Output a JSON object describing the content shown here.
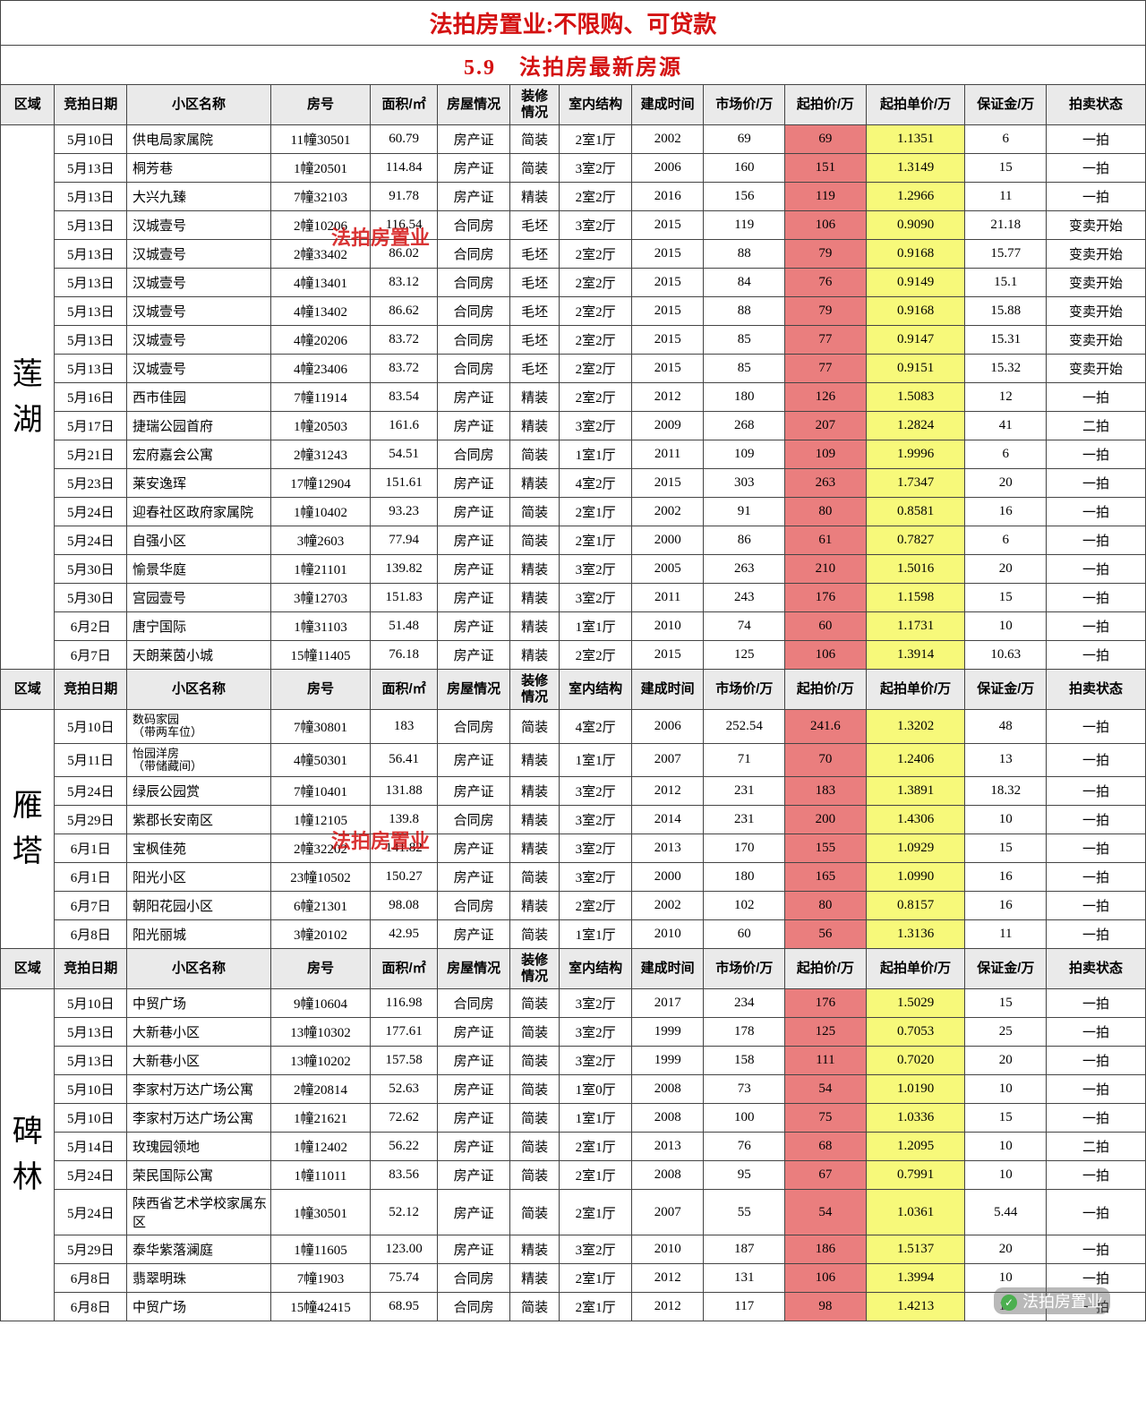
{
  "title": "法拍房置业:不限购、可贷款",
  "subtitle": "5.9　法拍房最新房源",
  "watermark_text": "法拍房置业",
  "headers": [
    "区域",
    "竞拍日期",
    "小区名称",
    "房号",
    "面积/㎡",
    "房屋情况",
    "装修情况",
    "室内结构",
    "建成时间",
    "市场价/万",
    "起拍价/万",
    "起拍单价/万",
    "保证金/万",
    "拍卖状态"
  ],
  "colors": {
    "title_color": "#d41111",
    "header_bg": "#eaeaea",
    "highlight_red": "#ea7e7e",
    "highlight_yellow": "#f7f97a",
    "border": "#444444"
  },
  "regions": [
    {
      "name": "莲\n湖",
      "rows": [
        [
          "5月10日",
          "供电局家属院",
          "11幢30501",
          "60.79",
          "房产证",
          "简装",
          "2室1厅",
          "2002",
          "69",
          "69",
          "1.1351",
          "6",
          "一拍"
        ],
        [
          "5月13日",
          "桐芳巷",
          "1幢20501",
          "114.84",
          "房产证",
          "简装",
          "3室2厅",
          "2006",
          "160",
          "151",
          "1.3149",
          "15",
          "一拍"
        ],
        [
          "5月13日",
          "大兴九臻",
          "7幢32103",
          "91.78",
          "房产证",
          "精装",
          "2室2厅",
          "2016",
          "156",
          "119",
          "1.2966",
          "11",
          "一拍"
        ],
        [
          "5月13日",
          "汉城壹号",
          "2幢10206",
          "116.54",
          "合同房",
          "毛坯",
          "3室2厅",
          "2015",
          "119",
          "106",
          "0.9090",
          "21.18",
          "变卖开始"
        ],
        [
          "5月13日",
          "汉城壹号",
          "2幢33402",
          "86.02",
          "合同房",
          "毛坯",
          "2室2厅",
          "2015",
          "88",
          "79",
          "0.9168",
          "15.77",
          "变卖开始"
        ],
        [
          "5月13日",
          "汉城壹号",
          "4幢13401",
          "83.12",
          "合同房",
          "毛坯",
          "2室2厅",
          "2015",
          "84",
          "76",
          "0.9149",
          "15.1",
          "变卖开始"
        ],
        [
          "5月13日",
          "汉城壹号",
          "4幢13402",
          "86.62",
          "合同房",
          "毛坯",
          "2室2厅",
          "2015",
          "88",
          "79",
          "0.9168",
          "15.88",
          "变卖开始"
        ],
        [
          "5月13日",
          "汉城壹号",
          "4幢20206",
          "83.72",
          "合同房",
          "毛坯",
          "2室2厅",
          "2015",
          "85",
          "77",
          "0.9147",
          "15.31",
          "变卖开始"
        ],
        [
          "5月13日",
          "汉城壹号",
          "4幢23406",
          "83.72",
          "合同房",
          "毛坯",
          "2室2厅",
          "2015",
          "85",
          "77",
          "0.9151",
          "15.32",
          "变卖开始"
        ],
        [
          "5月16日",
          "西市佳园",
          "7幢11914",
          "83.54",
          "房产证",
          "精装",
          "2室2厅",
          "2012",
          "180",
          "126",
          "1.5083",
          "12",
          "一拍"
        ],
        [
          "5月17日",
          "捷瑞公园首府",
          "1幢20503",
          "161.6",
          "房产证",
          "精装",
          "3室2厅",
          "2009",
          "268",
          "207",
          "1.2824",
          "41",
          "二拍"
        ],
        [
          "5月21日",
          "宏府嘉会公寓",
          "2幢31243",
          "54.51",
          "合同房",
          "简装",
          "1室1厅",
          "2011",
          "109",
          "109",
          "1.9996",
          "6",
          "一拍"
        ],
        [
          "5月23日",
          "莱安逸珲",
          "17幢12904",
          "151.61",
          "房产证",
          "精装",
          "4室2厅",
          "2015",
          "303",
          "263",
          "1.7347",
          "20",
          "一拍"
        ],
        [
          "5月24日",
          "迎春社区政府家属院",
          "1幢10402",
          "93.23",
          "房产证",
          "简装",
          "2室1厅",
          "2002",
          "91",
          "80",
          "0.8581",
          "16",
          "一拍"
        ],
        [
          "5月24日",
          "自强小区",
          "3幢2603",
          "77.94",
          "房产证",
          "简装",
          "2室1厅",
          "2000",
          "86",
          "61",
          "0.7827",
          "6",
          "一拍"
        ],
        [
          "5月30日",
          "愉景华庭",
          "1幢21101",
          "139.82",
          "房产证",
          "精装",
          "3室2厅",
          "2005",
          "263",
          "210",
          "1.5016",
          "20",
          "一拍"
        ],
        [
          "5月30日",
          "宫园壹号",
          "3幢12703",
          "151.83",
          "房产证",
          "精装",
          "3室2厅",
          "2011",
          "243",
          "176",
          "1.1598",
          "15",
          "一拍"
        ],
        [
          "6月2日",
          "唐宁国际",
          "1幢31103",
          "51.48",
          "房产证",
          "精装",
          "1室1厅",
          "2010",
          "74",
          "60",
          "1.1731",
          "10",
          "一拍"
        ],
        [
          "6月7日",
          "天朗莱茵小城",
          "15幢11405",
          "76.18",
          "房产证",
          "精装",
          "2室2厅",
          "2015",
          "125",
          "106",
          "1.3914",
          "10.63",
          "一拍"
        ]
      ]
    },
    {
      "name": "雁\n塔",
      "rows": [
        [
          "5月10日",
          "数码家园\n（带两车位）",
          "7幢30801",
          "183",
          "合同房",
          "简装",
          "4室2厅",
          "2006",
          "252.54",
          "241.6",
          "1.3202",
          "48",
          "一拍"
        ],
        [
          "5月11日",
          "怡园洋房\n（带储藏间）",
          "4幢50301",
          "56.41",
          "房产证",
          "精装",
          "1室1厅",
          "2007",
          "71",
          "70",
          "1.2406",
          "13",
          "一拍"
        ],
        [
          "5月24日",
          "绿辰公园赏",
          "7幢10401",
          "131.88",
          "房产证",
          "精装",
          "3室2厅",
          "2012",
          "231",
          "183",
          "1.3891",
          "18.32",
          "一拍"
        ],
        [
          "5月29日",
          "紫郡长安南区",
          "1幢12105",
          "139.8",
          "合同房",
          "精装",
          "3室2厅",
          "2014",
          "231",
          "200",
          "1.4306",
          "10",
          "一拍"
        ],
        [
          "6月1日",
          "宝枫佳苑",
          "2幢32202",
          "141.82",
          "房产证",
          "精装",
          "3室2厅",
          "2013",
          "170",
          "155",
          "1.0929",
          "15",
          "一拍"
        ],
        [
          "6月1日",
          "阳光小区",
          "23幢10502",
          "150.27",
          "房产证",
          "简装",
          "3室2厅",
          "2000",
          "180",
          "165",
          "1.0990",
          "16",
          "一拍"
        ],
        [
          "6月7日",
          "朝阳花园小区",
          "6幢21301",
          "98.08",
          "合同房",
          "精装",
          "2室2厅",
          "2002",
          "102",
          "80",
          "0.8157",
          "16",
          "一拍"
        ],
        [
          "6月8日",
          "阳光丽城",
          "3幢20102",
          "42.95",
          "房产证",
          "简装",
          "1室1厅",
          "2010",
          "60",
          "56",
          "1.3136",
          "11",
          "一拍"
        ]
      ]
    },
    {
      "name": "碑\n林",
      "rows": [
        [
          "5月10日",
          "中贸广场",
          "9幢10604",
          "116.98",
          "合同房",
          "简装",
          "3室2厅",
          "2017",
          "234",
          "176",
          "1.5029",
          "15",
          "一拍"
        ],
        [
          "5月13日",
          "大新巷小区",
          "13幢10302",
          "177.61",
          "房产证",
          "简装",
          "3室2厅",
          "1999",
          "178",
          "125",
          "0.7053",
          "25",
          "一拍"
        ],
        [
          "5月13日",
          "大新巷小区",
          "13幢10202",
          "157.58",
          "房产证",
          "简装",
          "3室2厅",
          "1999",
          "158",
          "111",
          "0.7020",
          "20",
          "一拍"
        ],
        [
          "5月10日",
          "李家村万达广场公寓",
          "2幢20814",
          "52.63",
          "房产证",
          "简装",
          "1室0厅",
          "2008",
          "73",
          "54",
          "1.0190",
          "10",
          "一拍"
        ],
        [
          "5月10日",
          "李家村万达广场公寓",
          "1幢21621",
          "72.62",
          "房产证",
          "简装",
          "1室1厅",
          "2008",
          "100",
          "75",
          "1.0336",
          "15",
          "一拍"
        ],
        [
          "5月14日",
          "玫瑰园领地",
          "1幢12402",
          "56.22",
          "房产证",
          "简装",
          "2室1厅",
          "2013",
          "76",
          "68",
          "1.2095",
          "10",
          "二拍"
        ],
        [
          "5月24日",
          "荣民国际公寓",
          "1幢11011",
          "83.56",
          "房产证",
          "简装",
          "2室1厅",
          "2008",
          "95",
          "67",
          "0.7991",
          "10",
          "一拍"
        ],
        [
          "5月24日",
          "陕西省艺术学校家属东区",
          "1幢30501",
          "52.12",
          "房产证",
          "简装",
          "2室1厅",
          "2007",
          "55",
          "54",
          "1.0361",
          "5.44",
          "一拍"
        ],
        [
          "5月29日",
          "泰华紫落澜庭",
          "1幢11605",
          "123.00",
          "房产证",
          "精装",
          "3室2厅",
          "2010",
          "187",
          "186",
          "1.5137",
          "20",
          "一拍"
        ],
        [
          "6月8日",
          "翡翠明珠",
          "7幢1903",
          "75.74",
          "合同房",
          "精装",
          "2室1厅",
          "2012",
          "131",
          "106",
          "1.3994",
          "10",
          "一拍"
        ],
        [
          "6月8日",
          "中贸广场",
          "15幢42415",
          "68.95",
          "合同房",
          "简装",
          "2室1厅",
          "2012",
          "117",
          "98",
          "1.4213",
          "10",
          "一拍"
        ]
      ]
    }
  ],
  "footer_wm": "法拍房置业"
}
